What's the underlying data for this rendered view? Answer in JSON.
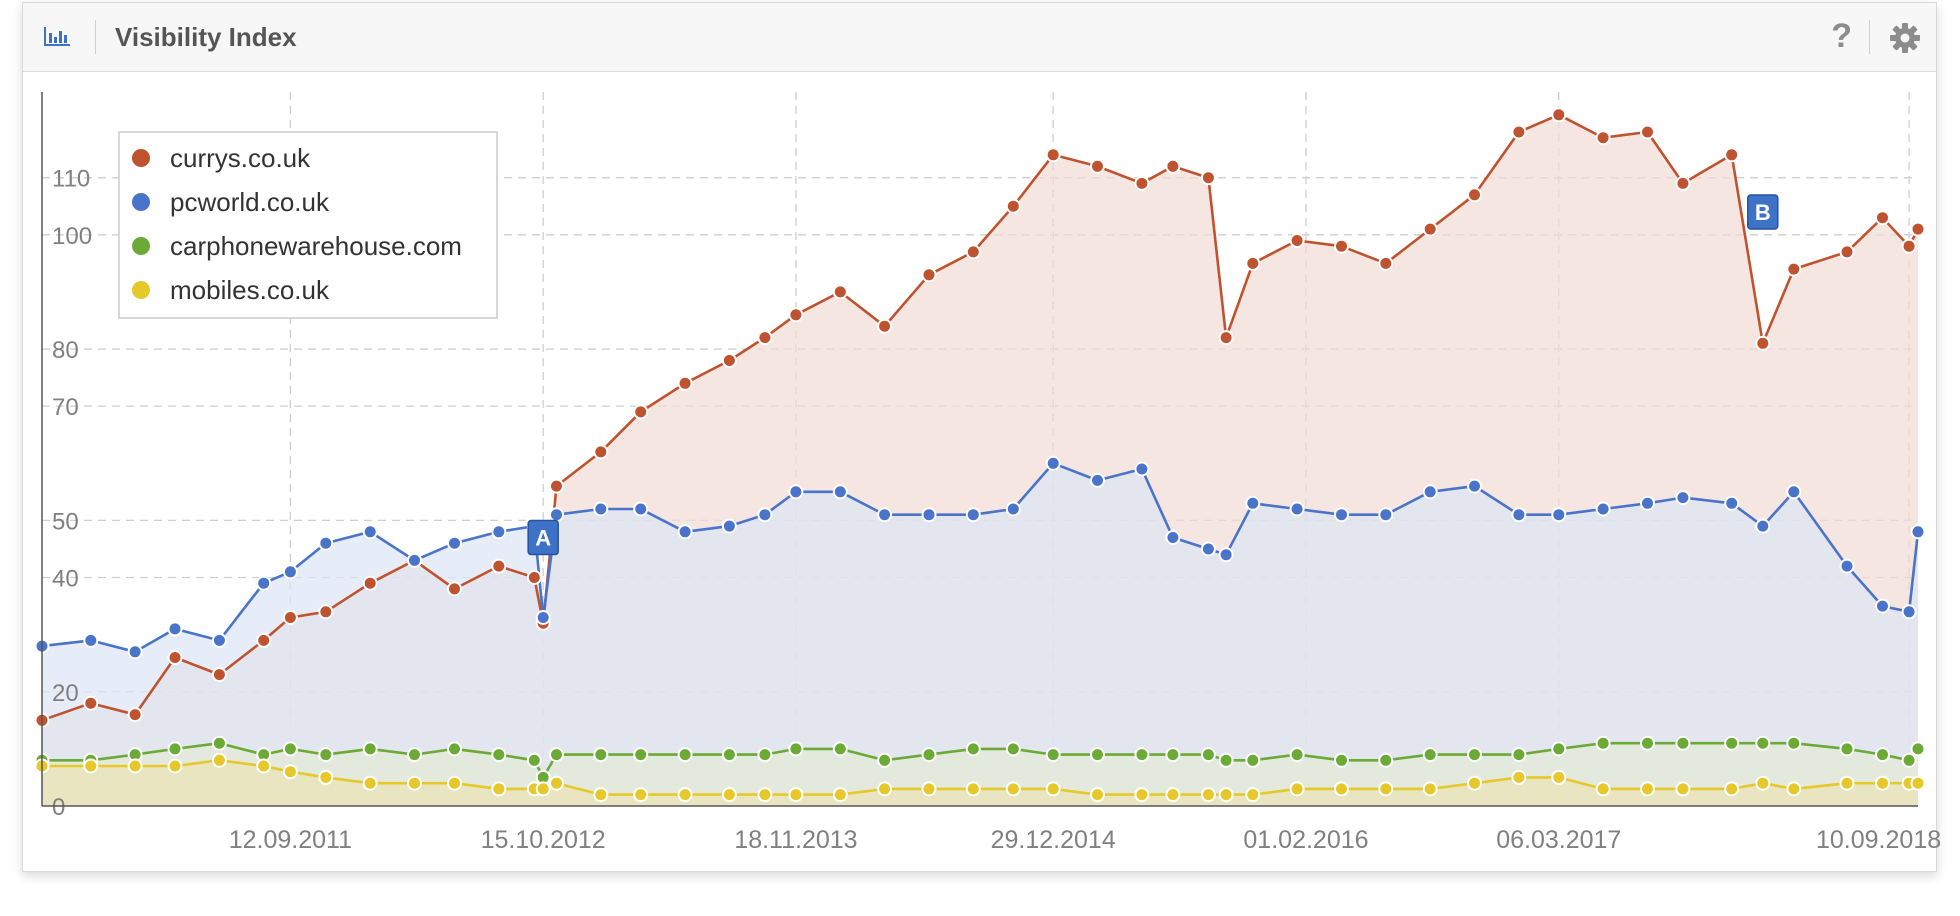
{
  "header": {
    "title": "Visibility Index",
    "chart_icon": "bar-chart-icon",
    "help_label": "?",
    "settings_icon": "gear-icon"
  },
  "chart_data": {
    "type": "area",
    "title": "",
    "xlabel": "",
    "ylabel": "",
    "ylim": [
      0,
      125
    ],
    "y_ticks": [
      0,
      20,
      40,
      50,
      70,
      80,
      100,
      110
    ],
    "x_tick_labels": [
      "12.09.2011",
      "15.10.2012",
      "18.11.2013",
      "29.12.2014",
      "01.02.2016",
      "06.03.2017",
      "10.09.2018"
    ],
    "x_ticks": [
      "2011-09-12",
      "2012-10-15",
      "2013-11-18",
      "2014-12-29",
      "2016-02-01",
      "2017-03-06",
      "2018-09-10"
    ],
    "xlim": [
      "2010-08-16",
      "2018-09-24"
    ],
    "grid": true,
    "legend_position": "top-left",
    "series": [
      {
        "name": "currys.co.uk",
        "color": "#c0532f",
        "fill": "#f2dcd4",
        "points": [
          [
            "2010-08-16",
            15
          ],
          [
            "2010-11-01",
            18
          ],
          [
            "2011-01-10",
            16
          ],
          [
            "2011-03-14",
            26
          ],
          [
            "2011-05-23",
            23
          ],
          [
            "2011-08-01",
            29
          ],
          [
            "2011-09-12",
            33
          ],
          [
            "2011-11-07",
            34
          ],
          [
            "2012-01-16",
            39
          ],
          [
            "2012-03-26",
            43
          ],
          [
            "2012-05-28",
            38
          ],
          [
            "2012-08-06",
            42
          ],
          [
            "2012-10-01",
            40
          ],
          [
            "2012-10-15",
            32
          ],
          [
            "2012-11-05",
            56
          ],
          [
            "2013-01-14",
            62
          ],
          [
            "2013-03-18",
            69
          ],
          [
            "2013-05-27",
            74
          ],
          [
            "2013-08-05",
            78
          ],
          [
            "2013-09-30",
            82
          ],
          [
            "2013-11-18",
            86
          ],
          [
            "2014-01-27",
            90
          ],
          [
            "2014-04-07",
            84
          ],
          [
            "2014-06-16",
            93
          ],
          [
            "2014-08-25",
            97
          ],
          [
            "2014-10-27",
            105
          ],
          [
            "2014-12-29",
            114
          ],
          [
            "2015-03-09",
            112
          ],
          [
            "2015-05-18",
            109
          ],
          [
            "2015-07-06",
            112
          ],
          [
            "2015-08-31",
            110
          ],
          [
            "2015-09-28",
            82
          ],
          [
            "2015-11-09",
            95
          ],
          [
            "2016-01-18",
            99
          ],
          [
            "2016-03-28",
            98
          ],
          [
            "2016-06-06",
            95
          ],
          [
            "2016-08-15",
            101
          ],
          [
            "2016-10-24",
            107
          ],
          [
            "2017-01-02",
            118
          ],
          [
            "2017-03-06",
            121
          ],
          [
            "2017-05-15",
            117
          ],
          [
            "2017-07-24",
            118
          ],
          [
            "2017-09-18",
            109
          ],
          [
            "2017-12-04",
            114
          ],
          [
            "2018-01-22",
            81
          ],
          [
            "2018-03-12",
            94
          ],
          [
            "2018-06-04",
            97
          ],
          [
            "2018-07-30",
            103
          ],
          [
            "2018-09-10",
            98
          ],
          [
            "2018-09-24",
            101
          ]
        ]
      },
      {
        "name": "pcworld.co.uk",
        "color": "#4a74c9",
        "fill": "#dbe4f5",
        "points": [
          [
            "2010-08-16",
            28
          ],
          [
            "2010-11-01",
            29
          ],
          [
            "2011-01-10",
            27
          ],
          [
            "2011-03-14",
            31
          ],
          [
            "2011-05-23",
            29
          ],
          [
            "2011-08-01",
            39
          ],
          [
            "2011-09-12",
            41
          ],
          [
            "2011-11-07",
            46
          ],
          [
            "2012-01-16",
            48
          ],
          [
            "2012-03-26",
            43
          ],
          [
            "2012-05-28",
            46
          ],
          [
            "2012-08-06",
            48
          ],
          [
            "2012-10-01",
            49
          ],
          [
            "2012-10-15",
            33
          ],
          [
            "2012-11-05",
            51
          ],
          [
            "2013-01-14",
            52
          ],
          [
            "2013-03-18",
            52
          ],
          [
            "2013-05-27",
            48
          ],
          [
            "2013-08-05",
            49
          ],
          [
            "2013-09-30",
            51
          ],
          [
            "2013-11-18",
            55
          ],
          [
            "2014-01-27",
            55
          ],
          [
            "2014-04-07",
            51
          ],
          [
            "2014-06-16",
            51
          ],
          [
            "2014-08-25",
            51
          ],
          [
            "2014-10-27",
            52
          ],
          [
            "2014-12-29",
            60
          ],
          [
            "2015-03-09",
            57
          ],
          [
            "2015-05-18",
            59
          ],
          [
            "2015-07-06",
            47
          ],
          [
            "2015-08-31",
            45
          ],
          [
            "2015-09-28",
            44
          ],
          [
            "2015-11-09",
            53
          ],
          [
            "2016-01-18",
            52
          ],
          [
            "2016-03-28",
            51
          ],
          [
            "2016-06-06",
            51
          ],
          [
            "2016-08-15",
            55
          ],
          [
            "2016-10-24",
            56
          ],
          [
            "2017-01-02",
            51
          ],
          [
            "2017-03-06",
            51
          ],
          [
            "2017-05-15",
            52
          ],
          [
            "2017-07-24",
            53
          ],
          [
            "2017-09-18",
            54
          ],
          [
            "2017-12-04",
            53
          ],
          [
            "2018-01-22",
            49
          ],
          [
            "2018-03-12",
            55
          ],
          [
            "2018-06-04",
            42
          ],
          [
            "2018-07-30",
            35
          ],
          [
            "2018-09-10",
            34
          ],
          [
            "2018-09-24",
            48
          ]
        ]
      },
      {
        "name": "carphonewarehouse.com",
        "color": "#6aaa35",
        "fill": "#e3ecd6",
        "points": [
          [
            "2010-08-16",
            8
          ],
          [
            "2010-11-01",
            8
          ],
          [
            "2011-01-10",
            9
          ],
          [
            "2011-03-14",
            10
          ],
          [
            "2011-05-23",
            11
          ],
          [
            "2011-08-01",
            9
          ],
          [
            "2011-09-12",
            10
          ],
          [
            "2011-11-07",
            9
          ],
          [
            "2012-01-16",
            10
          ],
          [
            "2012-03-26",
            9
          ],
          [
            "2012-05-28",
            10
          ],
          [
            "2012-08-06",
            9
          ],
          [
            "2012-10-01",
            8
          ],
          [
            "2012-10-15",
            5
          ],
          [
            "2012-11-05",
            9
          ],
          [
            "2013-01-14",
            9
          ],
          [
            "2013-03-18",
            9
          ],
          [
            "2013-05-27",
            9
          ],
          [
            "2013-08-05",
            9
          ],
          [
            "2013-09-30",
            9
          ],
          [
            "2013-11-18",
            10
          ],
          [
            "2014-01-27",
            10
          ],
          [
            "2014-04-07",
            8
          ],
          [
            "2014-06-16",
            9
          ],
          [
            "2014-08-25",
            10
          ],
          [
            "2014-10-27",
            10
          ],
          [
            "2014-12-29",
            9
          ],
          [
            "2015-03-09",
            9
          ],
          [
            "2015-05-18",
            9
          ],
          [
            "2015-07-06",
            9
          ],
          [
            "2015-08-31",
            9
          ],
          [
            "2015-09-28",
            8
          ],
          [
            "2015-11-09",
            8
          ],
          [
            "2016-01-18",
            9
          ],
          [
            "2016-03-28",
            8
          ],
          [
            "2016-06-06",
            8
          ],
          [
            "2016-08-15",
            9
          ],
          [
            "2016-10-24",
            9
          ],
          [
            "2017-01-02",
            9
          ],
          [
            "2017-03-06",
            10
          ],
          [
            "2017-05-15",
            11
          ],
          [
            "2017-07-24",
            11
          ],
          [
            "2017-09-18",
            11
          ],
          [
            "2017-12-04",
            11
          ],
          [
            "2018-01-22",
            11
          ],
          [
            "2018-03-12",
            11
          ],
          [
            "2018-06-04",
            10
          ],
          [
            "2018-07-30",
            9
          ],
          [
            "2018-09-10",
            8
          ],
          [
            "2018-09-24",
            10
          ]
        ]
      },
      {
        "name": "mobiles.co.uk",
        "color": "#e6c82b",
        "fill": "#e9e2b4",
        "points": [
          [
            "2010-08-16",
            7
          ],
          [
            "2010-11-01",
            7
          ],
          [
            "2011-01-10",
            7
          ],
          [
            "2011-03-14",
            7
          ],
          [
            "2011-05-23",
            8
          ],
          [
            "2011-08-01",
            7
          ],
          [
            "2011-09-12",
            6
          ],
          [
            "2011-11-07",
            5
          ],
          [
            "2012-01-16",
            4
          ],
          [
            "2012-03-26",
            4
          ],
          [
            "2012-05-28",
            4
          ],
          [
            "2012-08-06",
            3
          ],
          [
            "2012-10-01",
            3
          ],
          [
            "2012-10-15",
            3
          ],
          [
            "2012-11-05",
            4
          ],
          [
            "2013-01-14",
            2
          ],
          [
            "2013-03-18",
            2
          ],
          [
            "2013-05-27",
            2
          ],
          [
            "2013-08-05",
            2
          ],
          [
            "2013-09-30",
            2
          ],
          [
            "2013-11-18",
            2
          ],
          [
            "2014-01-27",
            2
          ],
          [
            "2014-04-07",
            3
          ],
          [
            "2014-06-16",
            3
          ],
          [
            "2014-08-25",
            3
          ],
          [
            "2014-10-27",
            3
          ],
          [
            "2014-12-29",
            3
          ],
          [
            "2015-03-09",
            2
          ],
          [
            "2015-05-18",
            2
          ],
          [
            "2015-07-06",
            2
          ],
          [
            "2015-08-31",
            2
          ],
          [
            "2015-09-28",
            2
          ],
          [
            "2015-11-09",
            2
          ],
          [
            "2016-01-18",
            3
          ],
          [
            "2016-03-28",
            3
          ],
          [
            "2016-06-06",
            3
          ],
          [
            "2016-08-15",
            3
          ],
          [
            "2016-10-24",
            4
          ],
          [
            "2017-01-02",
            5
          ],
          [
            "2017-03-06",
            5
          ],
          [
            "2017-05-15",
            3
          ],
          [
            "2017-07-24",
            3
          ],
          [
            "2017-09-18",
            3
          ],
          [
            "2017-12-04",
            3
          ],
          [
            "2018-01-22",
            4
          ],
          [
            "2018-03-12",
            3
          ],
          [
            "2018-06-04",
            4
          ],
          [
            "2018-07-30",
            4
          ],
          [
            "2018-09-10",
            4
          ],
          [
            "2018-09-24",
            4
          ]
        ]
      }
    ],
    "markers": [
      {
        "label": "A",
        "date": "2012-10-15",
        "value": 47,
        "color": "#3d72c7"
      },
      {
        "label": "B",
        "date": "2018-01-22",
        "value": 104,
        "color": "#3d72c7"
      }
    ]
  }
}
